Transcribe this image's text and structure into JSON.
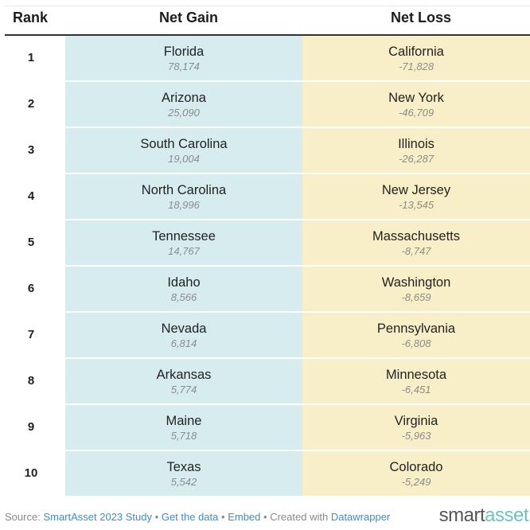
{
  "header": {
    "rank": "Rank",
    "gain": "Net Gain",
    "loss": "Net Loss"
  },
  "rows": [
    {
      "rank": "1",
      "gain_state": "Florida",
      "gain_value": "78,174",
      "loss_state": "California",
      "loss_value": "-71,828"
    },
    {
      "rank": "2",
      "gain_state": "Arizona",
      "gain_value": "25,090",
      "loss_state": "New York",
      "loss_value": "-46,709"
    },
    {
      "rank": "3",
      "gain_state": "South Carolina",
      "gain_value": "19,004",
      "loss_state": "Illinois",
      "loss_value": "-26,287"
    },
    {
      "rank": "4",
      "gain_state": "North Carolina",
      "gain_value": "18,996",
      "loss_state": "New Jersey",
      "loss_value": "-13,545"
    },
    {
      "rank": "5",
      "gain_state": "Tennessee",
      "gain_value": "14,767",
      "loss_state": "Massachusetts",
      "loss_value": "-8,747"
    },
    {
      "rank": "6",
      "gain_state": "Idaho",
      "gain_value": "8,566",
      "loss_state": "Washington",
      "loss_value": "-8,659"
    },
    {
      "rank": "7",
      "gain_state": "Nevada",
      "gain_value": "6,814",
      "loss_state": "Pennsylvania",
      "loss_value": "-6,808"
    },
    {
      "rank": "8",
      "gain_state": "Arkansas",
      "gain_value": "5,774",
      "loss_state": "Minnesota",
      "loss_value": "-6,451"
    },
    {
      "rank": "9",
      "gain_state": "Maine",
      "gain_value": "5,718",
      "loss_state": "Virginia",
      "loss_value": "-5,963"
    },
    {
      "rank": "10",
      "gain_state": "Texas",
      "gain_value": "5,542",
      "loss_state": "Colorado",
      "loss_value": "-5,249"
    }
  ],
  "footer": {
    "source_label": "Source:",
    "source_link": "SmartAsset 2023 Study",
    "sep": "•",
    "get_data": "Get the data",
    "embed": "Embed",
    "created_with": "Created with",
    "datawrapper": "Datawrapper"
  },
  "logo": {
    "part1": "smart",
    "part2": "asset"
  },
  "colors": {
    "gain_bg": "#d7ecef",
    "loss_bg": "#f8efc8",
    "link": "#3a8fc4"
  }
}
